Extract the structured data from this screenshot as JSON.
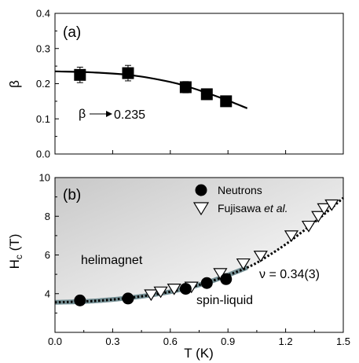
{
  "chart_data": [
    {
      "panel": "(a)",
      "type": "scatter",
      "ylabel": "β",
      "xlim": [
        0,
        1.5
      ],
      "ylim": [
        0,
        0.4
      ],
      "yticks": [
        "0.0",
        "0.1",
        "0.2",
        "0.3",
        "0.4"
      ],
      "grid": false,
      "series": [
        {
          "marker": "filled-square",
          "color": "#000000",
          "x": [
            0.13,
            0.38,
            0.68,
            0.79,
            0.89
          ],
          "y": [
            0.225,
            0.23,
            0.19,
            0.17,
            0.15
          ],
          "yerr": [
            0.022,
            0.022,
            0.016,
            0.015,
            0.014
          ]
        }
      ],
      "fit_curve": {
        "style": "solid",
        "x": [
          0.0,
          0.2,
          0.4,
          0.6,
          0.7,
          0.8,
          0.9,
          1.0
        ],
        "y": [
          0.235,
          0.232,
          0.224,
          0.205,
          0.19,
          0.172,
          0.152,
          0.13
        ]
      },
      "annotation": {
        "symbol": "β",
        "value": "0.235"
      }
    },
    {
      "panel": "(b)",
      "type": "scatter",
      "xlabel": "T (K)",
      "ylabel": "H",
      "ylabel_sub": "c",
      "ylabel_unit": " (T)",
      "xlim": [
        0,
        1.5
      ],
      "ylim": [
        2,
        10
      ],
      "xticks": [
        "0.0",
        "0.3",
        "0.6",
        "0.9",
        "1.2",
        "1.5"
      ],
      "yticks": [
        "4",
        "6",
        "8",
        "10"
      ],
      "grid": false,
      "series": [
        {
          "name": "Neutrons",
          "marker": "filled-circle",
          "color": "#000000",
          "x": [
            0.13,
            0.38,
            0.68,
            0.79,
            0.89
          ],
          "y": [
            3.65,
            3.75,
            4.25,
            4.55,
            4.75
          ]
        },
        {
          "name_prefix": "Fujisawa ",
          "name_em": "et al.",
          "marker": "open-triangle-down",
          "color": "#000000",
          "x": [
            0.5,
            0.55,
            0.62,
            0.71,
            0.86,
            0.98,
            1.07,
            1.23,
            1.32,
            1.37,
            1.4,
            1.44
          ],
          "y": [
            3.95,
            4.1,
            4.25,
            4.35,
            5.05,
            5.55,
            5.95,
            7.0,
            7.5,
            8.0,
            8.4,
            8.6
          ]
        }
      ],
      "fit_curve": {
        "style": "dotted",
        "x": [
          0.0,
          0.2,
          0.4,
          0.6,
          0.8,
          1.0,
          1.1,
          1.2,
          1.3,
          1.4,
          1.5
        ],
        "y": [
          3.55,
          3.62,
          3.8,
          4.1,
          4.6,
          5.35,
          5.9,
          6.55,
          7.3,
          8.1,
          8.95
        ]
      },
      "phase_labels": [
        "helimagnet",
        "spin-liquid"
      ],
      "annotation": {
        "symbol": "ν",
        "text": " = 0.34(3)"
      },
      "colors": {
        "shade_dark": "#c8c8c8",
        "shade_light": "#ffffff",
        "band": "#5f7f85"
      }
    }
  ]
}
